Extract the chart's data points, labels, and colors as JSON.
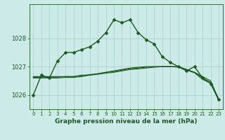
{
  "title": "Graphe pression niveau de la mer (hPa)",
  "background_color": "#cceae7",
  "grid_color": "#aad4d0",
  "line_color": "#1a5c1a",
  "xlim": [
    -0.5,
    23.5
  ],
  "ylim": [
    1025.5,
    1029.2
  ],
  "yticks": [
    1026,
    1027,
    1028
  ],
  "xticks": [
    0,
    1,
    2,
    3,
    4,
    5,
    6,
    7,
    8,
    9,
    10,
    11,
    12,
    13,
    14,
    15,
    16,
    17,
    18,
    19,
    20,
    21,
    22,
    23
  ],
  "series": [
    {
      "x": [
        0,
        1,
        2,
        3,
        4,
        5,
        6,
        7,
        8,
        9,
        10,
        11,
        12,
        13,
        14,
        15,
        16,
        17,
        18,
        19,
        20,
        21,
        22,
        23
      ],
      "y": [
        1026.0,
        1026.7,
        1026.6,
        1027.2,
        1027.5,
        1027.5,
        1027.6,
        1027.7,
        1027.9,
        1028.2,
        1028.65,
        1028.55,
        1028.65,
        1028.2,
        1027.95,
        1027.8,
        1027.35,
        1027.15,
        1027.0,
        1026.85,
        1027.0,
        1026.6,
        1026.4,
        1025.85
      ],
      "marker": "D",
      "markersize": 2.5,
      "linewidth": 1.0
    },
    {
      "x": [
        0,
        1,
        2,
        3,
        4,
        5,
        6,
        7,
        8,
        9,
        10,
        11,
        12,
        13,
        14,
        15,
        16,
        17,
        18,
        19,
        20,
        21,
        22,
        23
      ],
      "y": [
        1026.65,
        1026.65,
        1026.65,
        1026.65,
        1026.65,
        1026.65,
        1026.7,
        1026.7,
        1026.75,
        1026.8,
        1026.85,
        1026.9,
        1026.95,
        1026.98,
        1027.0,
        1027.0,
        1027.0,
        1027.0,
        1027.0,
        1026.9,
        1026.8,
        1026.65,
        1026.5,
        1025.85
      ],
      "marker": null,
      "markersize": 0,
      "linewidth": 0.8
    },
    {
      "x": [
        0,
        1,
        2,
        3,
        4,
        5,
        6,
        7,
        8,
        9,
        10,
        11,
        12,
        13,
        14,
        15,
        16,
        17,
        18,
        19,
        20,
        21,
        22,
        23
      ],
      "y": [
        1026.62,
        1026.63,
        1026.63,
        1026.63,
        1026.65,
        1026.65,
        1026.68,
        1026.72,
        1026.75,
        1026.8,
        1026.83,
        1026.88,
        1026.92,
        1026.95,
        1026.98,
        1027.0,
        1027.0,
        1027.0,
        1027.0,
        1026.9,
        1026.8,
        1026.6,
        1026.45,
        1025.82
      ],
      "marker": null,
      "markersize": 0,
      "linewidth": 0.8
    },
    {
      "x": [
        0,
        1,
        2,
        3,
        4,
        5,
        6,
        7,
        8,
        9,
        10,
        11,
        12,
        13,
        14,
        15,
        16,
        17,
        18,
        19,
        20,
        21,
        22,
        23
      ],
      "y": [
        1026.6,
        1026.6,
        1026.6,
        1026.6,
        1026.62,
        1026.62,
        1026.65,
        1026.7,
        1026.73,
        1026.77,
        1026.8,
        1026.85,
        1026.9,
        1026.92,
        1026.95,
        1026.98,
        1027.0,
        1027.0,
        1026.98,
        1026.88,
        1026.78,
        1026.55,
        1026.42,
        1025.8
      ],
      "marker": null,
      "markersize": 0,
      "linewidth": 0.8
    }
  ],
  "xlabel_fontsize": 6.5,
  "ytick_fontsize": 6,
  "xtick_fontsize": 5
}
